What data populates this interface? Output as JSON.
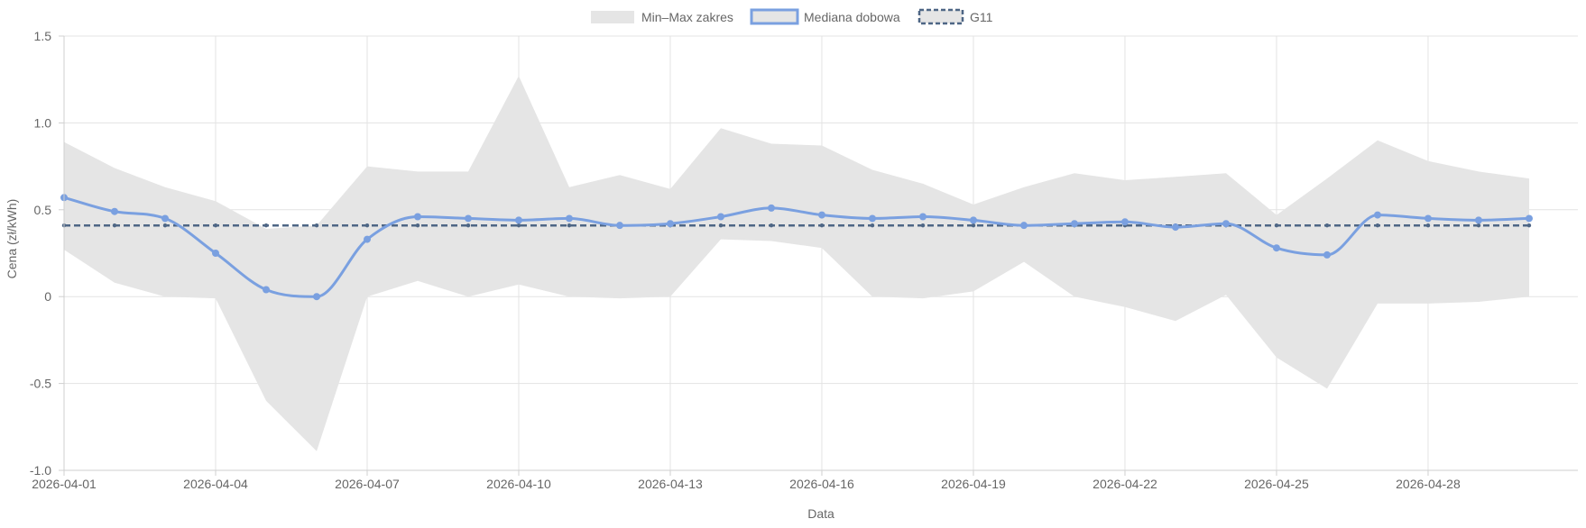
{
  "chart_data": {
    "type": "line",
    "xlabel": "Data",
    "ylabel": "Cena (zł/kWh)",
    "ylim": [
      -1.0,
      1.5
    ],
    "y_ticks": [
      "1.5",
      "1.0",
      "0.5",
      "0",
      "-0.5",
      "-1.0"
    ],
    "y_tick_values": [
      1.5,
      1.0,
      0.5,
      0,
      -0.5,
      -1.0
    ],
    "x_tick_labels": [
      "2026-04-01",
      "2026-04-04",
      "2026-04-07",
      "2026-04-10",
      "2026-04-13",
      "2026-04-16",
      "2026-04-19",
      "2026-04-22",
      "2026-04-25",
      "2026-04-28"
    ],
    "x_tick_index": [
      0,
      3,
      6,
      9,
      12,
      15,
      18,
      21,
      24,
      27
    ],
    "grid": true,
    "legend_position": "top-center",
    "x": [
      "2026-04-01",
      "2026-04-02",
      "2026-04-03",
      "2026-04-04",
      "2026-04-05",
      "2026-04-06",
      "2026-04-07",
      "2026-04-08",
      "2026-04-09",
      "2026-04-10",
      "2026-04-11",
      "2026-04-12",
      "2026-04-13",
      "2026-04-14",
      "2026-04-15",
      "2026-04-16",
      "2026-04-17",
      "2026-04-18",
      "2026-04-19",
      "2026-04-20",
      "2026-04-21",
      "2026-04-22",
      "2026-04-23",
      "2026-04-24",
      "2026-04-25",
      "2026-04-26",
      "2026-04-27",
      "2026-04-28",
      "2026-04-29",
      "2026-04-30"
    ],
    "series": [
      {
        "name": "Min–Max zakres",
        "type": "range",
        "color": "#e5e5e5",
        "min": [
          0.27,
          0.08,
          0.0,
          -0.01,
          -0.6,
          -0.89,
          0.0,
          0.09,
          0.0,
          0.07,
          0.0,
          -0.01,
          0.0,
          0.33,
          0.32,
          0.28,
          0.0,
          -0.01,
          0.03,
          0.2,
          0.0,
          -0.06,
          -0.14,
          0.01,
          -0.35,
          -0.53,
          -0.04,
          -0.04,
          -0.03,
          0.0
        ],
        "max": [
          0.89,
          0.74,
          0.63,
          0.55,
          0.39,
          0.41,
          0.75,
          0.72,
          0.72,
          1.27,
          0.63,
          0.7,
          0.62,
          0.97,
          0.88,
          0.87,
          0.73,
          0.65,
          0.53,
          0.63,
          0.71,
          0.67,
          0.69,
          0.71,
          0.47,
          0.68,
          0.9,
          0.78,
          0.72,
          0.68
        ]
      },
      {
        "name": "Mediana dobowa",
        "type": "line",
        "color": "#7aa0e0",
        "values": [
          0.57,
          0.49,
          0.45,
          0.25,
          0.04,
          0.0,
          0.33,
          0.46,
          0.45,
          0.44,
          0.45,
          0.41,
          0.42,
          0.46,
          0.51,
          0.47,
          0.45,
          0.46,
          0.44,
          0.41,
          0.42,
          0.43,
          0.4,
          0.42,
          0.28,
          0.24,
          0.47,
          0.45,
          0.44,
          0.45
        ]
      },
      {
        "name": "G11",
        "type": "dashed",
        "color": "#4e6685",
        "values": [
          0.41,
          0.41,
          0.41,
          0.41,
          0.41,
          0.41,
          0.41,
          0.41,
          0.41,
          0.41,
          0.41,
          0.41,
          0.41,
          0.41,
          0.41,
          0.41,
          0.41,
          0.41,
          0.41,
          0.41,
          0.41,
          0.41,
          0.41,
          0.41,
          0.41,
          0.41,
          0.41,
          0.41,
          0.41,
          0.41
        ]
      }
    ]
  },
  "legend": {
    "items": [
      {
        "label": "Min–Max zakres"
      },
      {
        "label": "Mediana dobowa"
      },
      {
        "label": "G11"
      }
    ]
  }
}
